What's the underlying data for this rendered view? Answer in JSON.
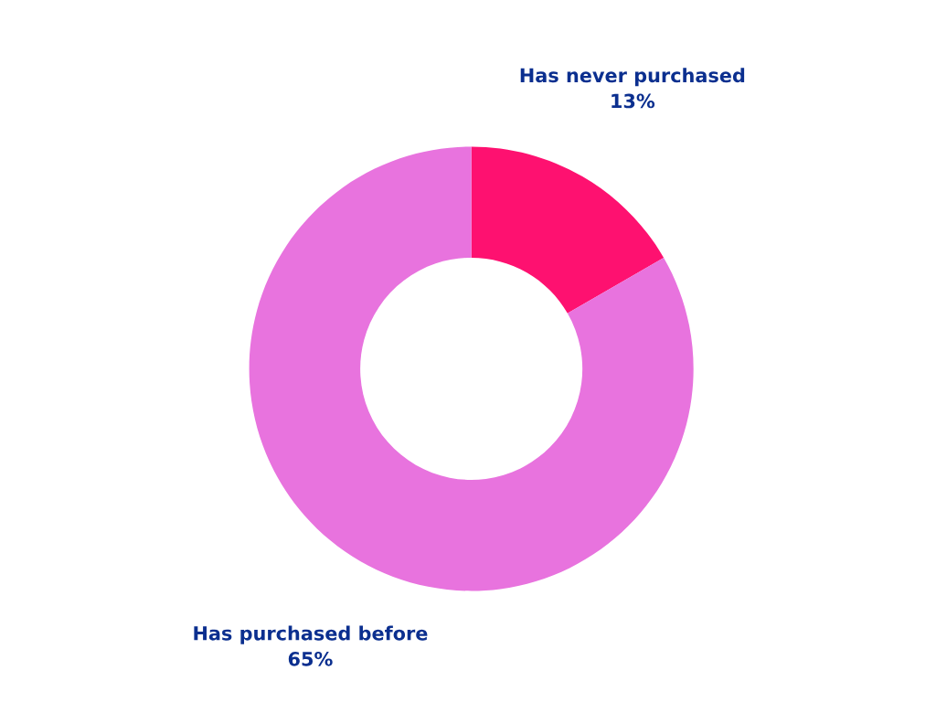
{
  "chart_data": {
    "type": "donut",
    "categories": [
      "Has never purchased",
      "Has purchased before"
    ],
    "values": [
      13,
      65
    ],
    "value_labels": [
      "13%",
      "65%"
    ],
    "colors": [
      "#fe1170",
      "#e873de"
    ],
    "legend": false
  }
}
